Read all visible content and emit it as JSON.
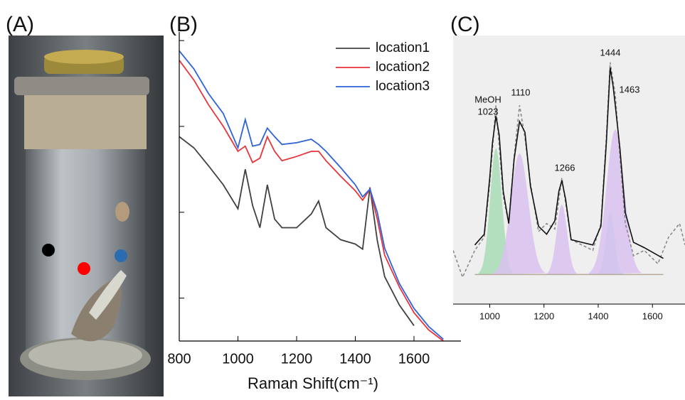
{
  "panel_labels": [
    "(A)",
    "(B)",
    "(C)"
  ],
  "chart_data": [
    {
      "type": "line",
      "xlabel": "Raman Shift(cm⁻¹)",
      "x": [
        800,
        850,
        900,
        950,
        1000,
        1025,
        1050,
        1075,
        1100,
        1125,
        1150,
        1200,
        1250,
        1275,
        1300,
        1350,
        1400,
        1425,
        1450,
        1475,
        1500,
        1550,
        1600,
        1650,
        1700
      ],
      "series": [
        {
          "name": "location1",
          "color": "#404040",
          "values": [
            2.38,
            2.25,
            2.04,
            1.82,
            1.54,
            2.0,
            1.58,
            1.32,
            1.82,
            1.42,
            1.32,
            1.32,
            1.48,
            1.63,
            1.32,
            1.18,
            1.13,
            1.07,
            1.79,
            1.17,
            0.75,
            0.42,
            0.18,
            null,
            null
          ]
        },
        {
          "name": "location2",
          "color": "#e8343a",
          "values": [
            3.27,
            3.04,
            2.75,
            2.5,
            2.21,
            2.27,
            2.08,
            2.13,
            2.38,
            2.21,
            2.1,
            2.15,
            2.21,
            2.21,
            2.1,
            1.92,
            1.75,
            1.64,
            1.77,
            1.42,
            1.0,
            0.63,
            0.33,
            0.13,
            0.0
          ]
        },
        {
          "name": "location3",
          "color": "#2f63d6",
          "values": [
            3.38,
            3.17,
            2.88,
            2.65,
            2.25,
            2.58,
            2.27,
            2.29,
            2.48,
            2.38,
            2.29,
            2.31,
            2.35,
            2.29,
            2.21,
            2.02,
            1.82,
            1.68,
            1.77,
            1.5,
            1.08,
            0.67,
            0.38,
            0.17,
            0.02
          ]
        }
      ],
      "xlim": [
        800,
        1760
      ],
      "xticks": [
        800,
        1000,
        1200,
        1400,
        1600
      ],
      "ylim": [
        0,
        3.6
      ],
      "yticks": [
        0.5,
        1.5,
        2.5,
        3.5
      ],
      "legend": "upper-right"
    },
    {
      "type": "peak-fit",
      "annotations": [
        "MeOH",
        "1023",
        "1110",
        "1266",
        "1444",
        "1463"
      ],
      "raw": {
        "color": "#8a8a8a",
        "x": [
          865,
          900,
          945,
          980,
          1000,
          1023,
          1050,
          1070,
          1090,
          1110,
          1130,
          1150,
          1180,
          1210,
          1240,
          1266,
          1300,
          1340,
          1380,
          1410,
          1430,
          1444,
          1463,
          1480,
          1500,
          1530,
          1570,
          1620,
          1660,
          1700,
          1720
        ],
        "values": [
          0.2,
          0.1,
          0.2,
          0.25,
          0.45,
          0.74,
          0.4,
          0.3,
          0.55,
          0.74,
          0.62,
          0.45,
          0.27,
          0.3,
          0.28,
          0.47,
          0.24,
          0.22,
          0.2,
          0.3,
          0.62,
          0.9,
          0.78,
          0.55,
          0.3,
          0.18,
          0.2,
          0.15,
          0.25,
          0.3,
          0.22
        ]
      },
      "fit": {
        "color": "#111111",
        "x": [
          945,
          980,
          1000,
          1010,
          1023,
          1035,
          1050,
          1070,
          1090,
          1110,
          1130,
          1150,
          1180,
          1210,
          1240,
          1255,
          1266,
          1280,
          1300,
          1340,
          1380,
          1410,
          1430,
          1444,
          1455,
          1463,
          1480,
          1500,
          1530,
          1570,
          1640
        ],
        "values": [
          0.22,
          0.26,
          0.47,
          0.6,
          0.7,
          0.63,
          0.42,
          0.3,
          0.54,
          0.68,
          0.64,
          0.44,
          0.29,
          0.26,
          0.31,
          0.42,
          0.46,
          0.39,
          0.24,
          0.23,
          0.22,
          0.29,
          0.6,
          0.88,
          0.81,
          0.74,
          0.58,
          0.34,
          0.23,
          0.21,
          0.17
        ]
      },
      "baseline": {
        "color": "#b8a898",
        "x": [
          945,
          1640
        ],
        "values": [
          0.11,
          0.11
        ]
      },
      "components": [
        {
          "center": 1023,
          "peak": 0.58,
          "fwhm": 51,
          "color": "#a8dcb6"
        },
        {
          "center": 1110,
          "peak": 0.56,
          "fwhm": 77,
          "color": "#d9c2ef"
        },
        {
          "center": 1266,
          "peak": 0.37,
          "fwhm": 46,
          "color": "#d9c2ef"
        },
        {
          "center": 1444,
          "peak": 0.34,
          "fwhm": 38,
          "color": "#a9d3ee"
        },
        {
          "center": 1463,
          "peak": 0.65,
          "fwhm": 77,
          "color": "#d9c2ef"
        }
      ],
      "xlim": [
        865,
        1720
      ],
      "xticks": [
        1000,
        1200,
        1400,
        1600
      ],
      "ylim": [
        0,
        1
      ]
    }
  ]
}
